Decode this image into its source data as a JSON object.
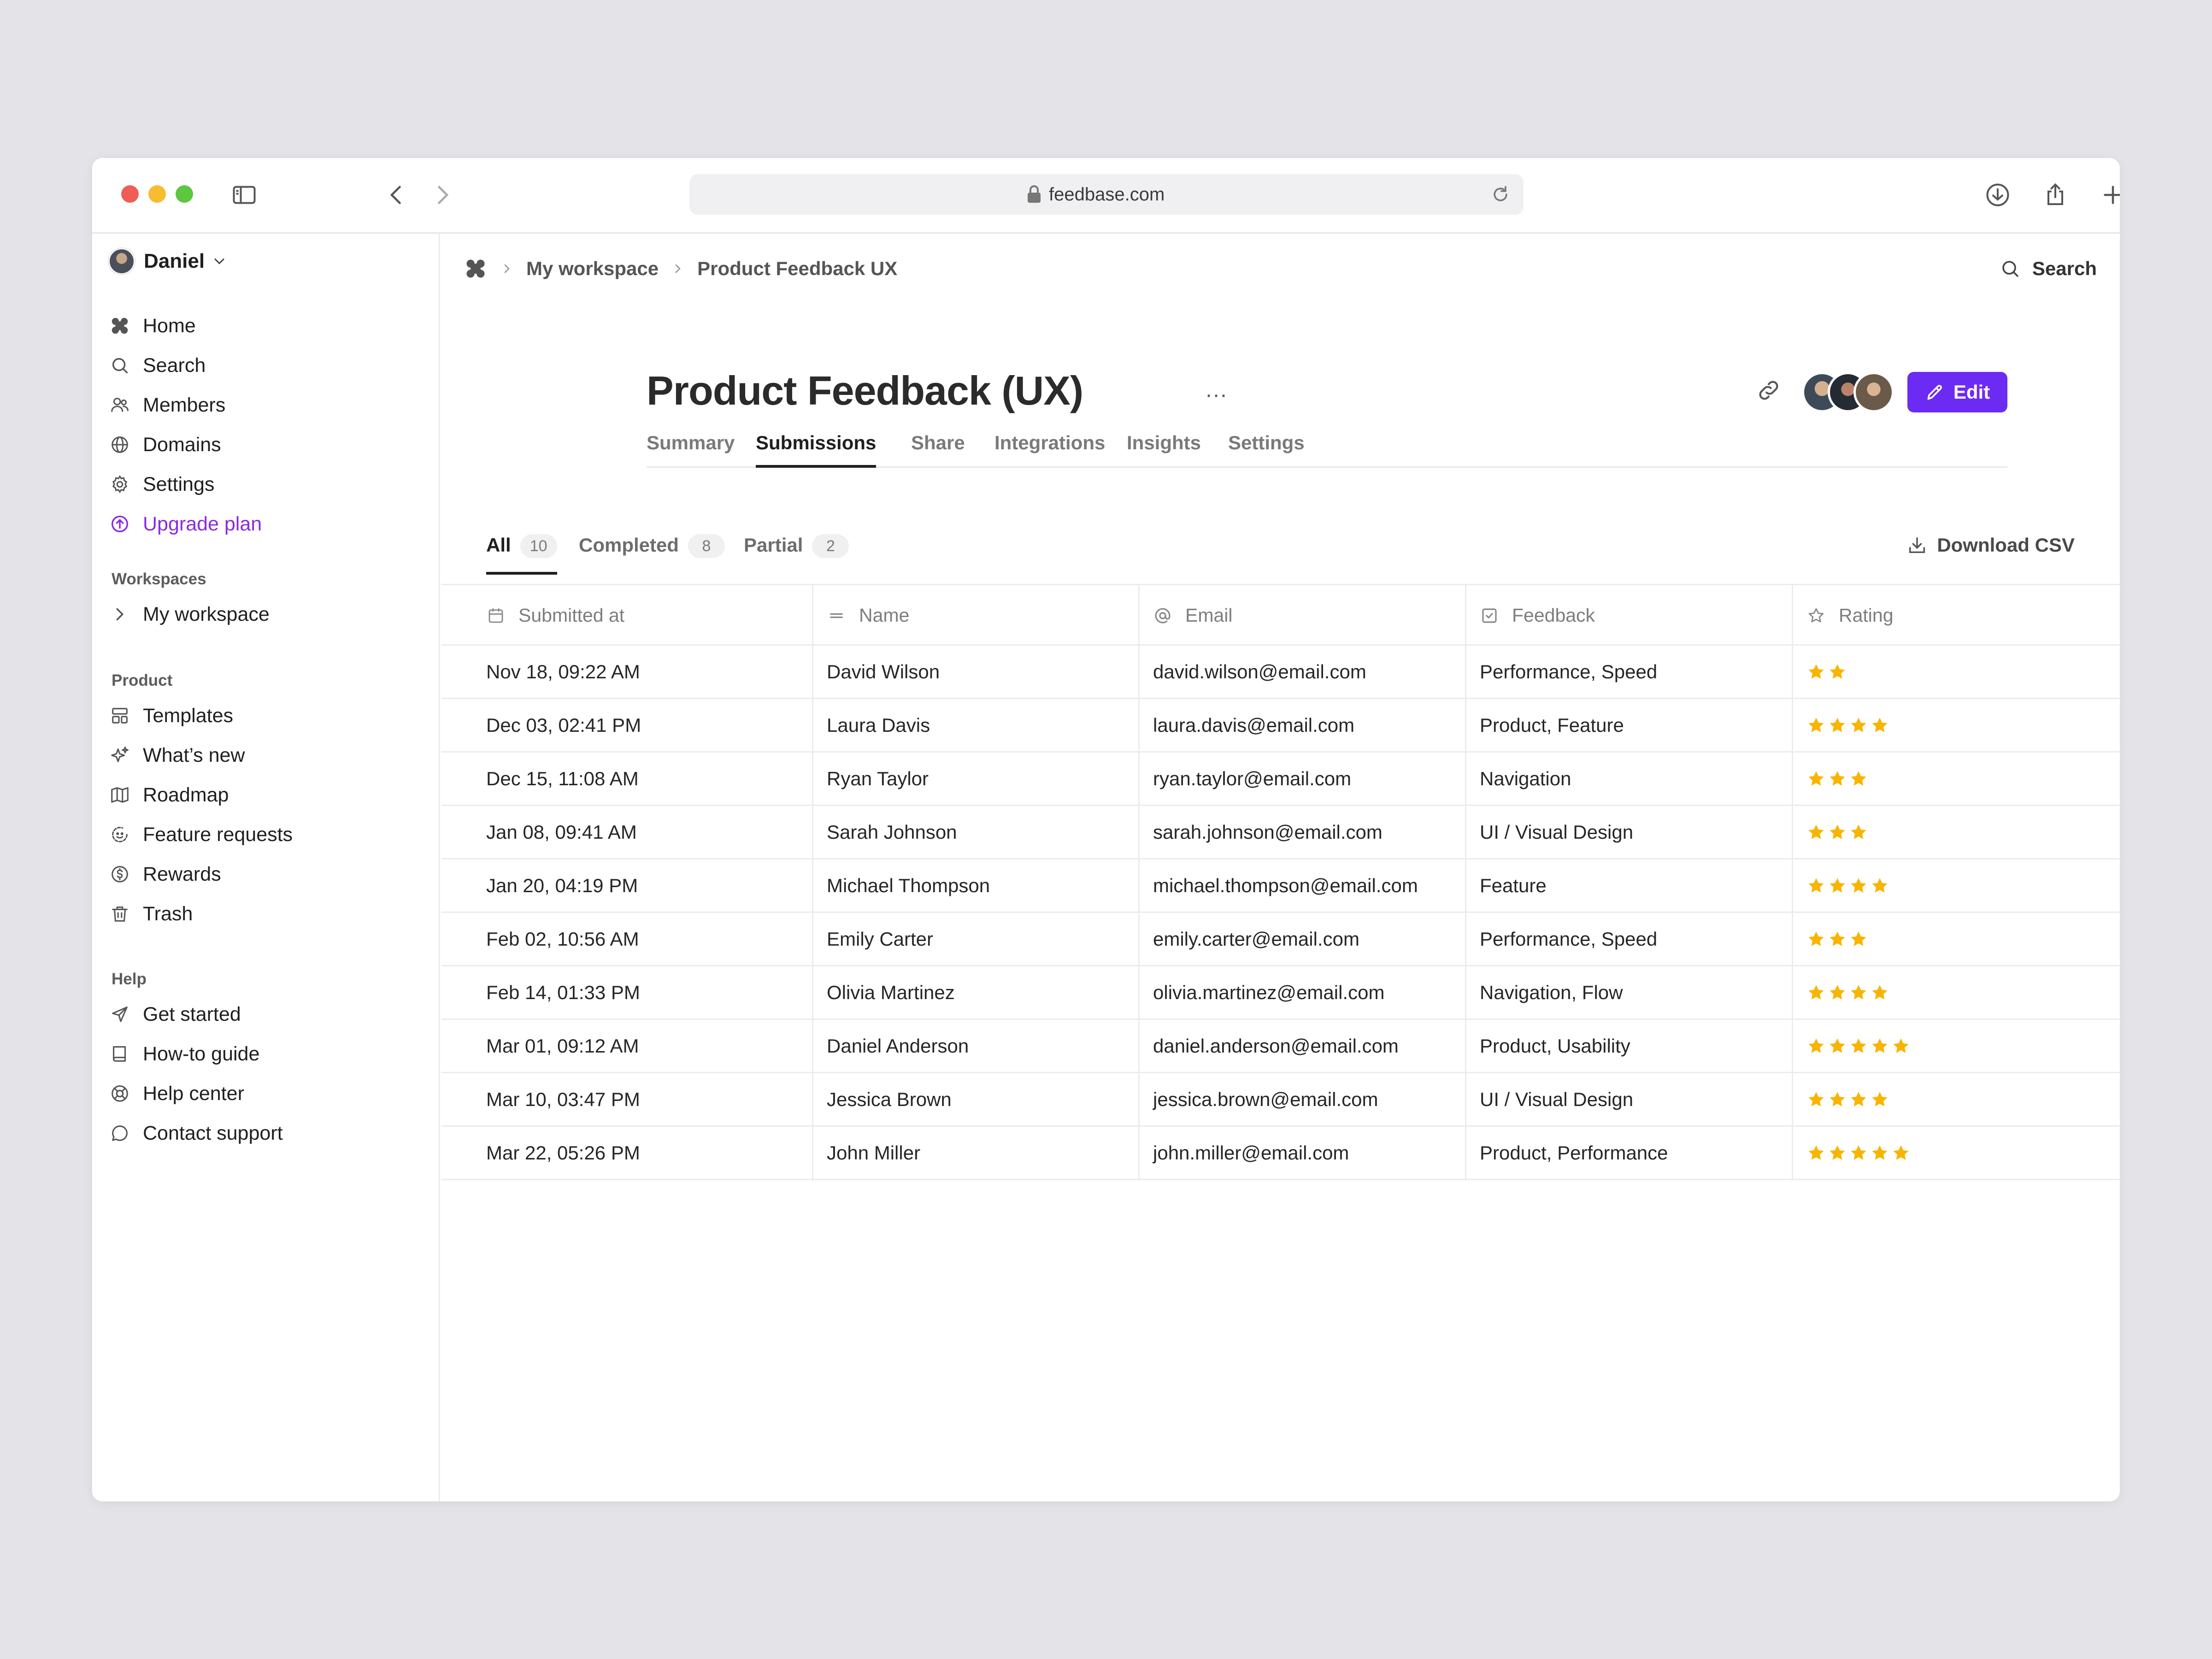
{
  "browser": {
    "url": "feedbase.com"
  },
  "sidebar": {
    "user_name": "Daniel",
    "main_items": [
      {
        "label": "Home",
        "icon": "home-icon"
      },
      {
        "label": "Search",
        "icon": "search-icon"
      },
      {
        "label": "Members",
        "icon": "members-icon"
      },
      {
        "label": "Domains",
        "icon": "globe-icon"
      },
      {
        "label": "Settings",
        "icon": "gear-icon"
      },
      {
        "label": "Upgrade plan",
        "icon": "upgrade-icon"
      }
    ],
    "workspaces_label": "Workspaces",
    "workspace_items": [
      {
        "label": "My workspace",
        "icon": "chevron-right-icon"
      }
    ],
    "product_label": "Product",
    "product_items": [
      {
        "label": "Templates",
        "icon": "templates-icon"
      },
      {
        "label": "What’s new",
        "icon": "sparkle-icon"
      },
      {
        "label": "Roadmap",
        "icon": "map-icon"
      },
      {
        "label": "Feature requests",
        "icon": "feature-request-icon"
      },
      {
        "label": "Rewards",
        "icon": "rewards-icon"
      },
      {
        "label": "Trash",
        "icon": "trash-icon"
      }
    ],
    "help_label": "Help",
    "help_items": [
      {
        "label": "Get started",
        "icon": "send-icon"
      },
      {
        "label": "How-to guide",
        "icon": "book-icon"
      },
      {
        "label": "Help center",
        "icon": "lifebuoy-icon"
      },
      {
        "label": "Contact support",
        "icon": "chat-icon"
      }
    ],
    "accent_color": "#8a2be2"
  },
  "header": {
    "breadcrumb": [
      "My workspace",
      "Product Feedback UX"
    ],
    "search_label": "Search"
  },
  "page": {
    "title": "Product Feedback (UX)",
    "more_label": "···",
    "edit_label": "Edit",
    "edit_color": "#6c2bf3",
    "tabs": [
      "Summary",
      "Submissions",
      "Share",
      "Integrations",
      "Insights",
      "Settings"
    ],
    "active_tab": "Submissions"
  },
  "filters": [
    {
      "label": "All",
      "count": "10"
    },
    {
      "label": "Completed",
      "count": "8"
    },
    {
      "label": "Partial",
      "count": "2"
    }
  ],
  "download_label": "Download CSV",
  "table": {
    "columns": [
      {
        "label": "Submitted at",
        "icon": "calendar-icon"
      },
      {
        "label": "Name",
        "icon": "text-icon"
      },
      {
        "label": "Email",
        "icon": "at-icon"
      },
      {
        "label": "Feedback",
        "icon": "checkbox-icon"
      },
      {
        "label": "Rating",
        "icon": "star-outline-icon"
      }
    ],
    "star_color": "#f7b500",
    "rows": [
      {
        "submitted": "Nov 18, 09:22 AM",
        "name": "David Wilson",
        "email": "david.wilson@email.com",
        "feedback": "Performance, Speed",
        "rating": 2
      },
      {
        "submitted": "Dec 03, 02:41 PM",
        "name": "Laura Davis",
        "email": "laura.davis@email.com",
        "feedback": "Product, Feature",
        "rating": 4
      },
      {
        "submitted": "Dec 15, 11:08 AM",
        "name": "Ryan Taylor",
        "email": "ryan.taylor@email.com",
        "feedback": "Navigation",
        "rating": 3
      },
      {
        "submitted": "Jan 08, 09:41 AM",
        "name": "Sarah Johnson",
        "email": "sarah.johnson@email.com",
        "feedback": "UI / Visual Design",
        "rating": 3
      },
      {
        "submitted": "Jan 20, 04:19 PM",
        "name": "Michael Thompson",
        "email": "michael.thompson@email.com",
        "feedback": "Feature",
        "rating": 4
      },
      {
        "submitted": "Feb 02, 10:56 AM",
        "name": "Emily Carter",
        "email": "emily.carter@email.com",
        "feedback": "Performance, Speed",
        "rating": 3
      },
      {
        "submitted": "Feb 14, 01:33 PM",
        "name": "Olivia Martinez",
        "email": "olivia.martinez@email.com",
        "feedback": "Navigation, Flow",
        "rating": 4
      },
      {
        "submitted": "Mar 01, 09:12 AM",
        "name": "Daniel Anderson",
        "email": "daniel.anderson@email.com",
        "feedback": "Product, Usability",
        "rating": 5
      },
      {
        "submitted": "Mar 10, 03:47 PM",
        "name": "Jessica Brown",
        "email": "jessica.brown@email.com",
        "feedback": "UI / Visual Design",
        "rating": 4
      },
      {
        "submitted": "Mar 22, 05:26 PM",
        "name": "John Miller",
        "email": "john.miller@email.com",
        "feedback": "Product, Performance",
        "rating": 5
      }
    ]
  },
  "help_button_label": "?"
}
